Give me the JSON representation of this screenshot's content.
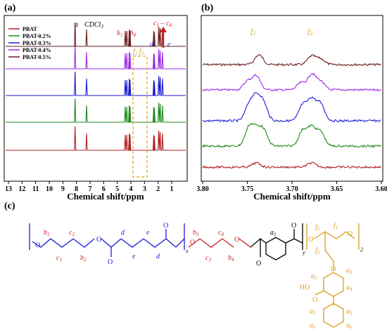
{
  "panels": {
    "a": "(a)",
    "b": "(b)",
    "c": "(c)"
  },
  "panel_a": {
    "xlabel": "Chemical shift/ppm",
    "ticks": [
      "13",
      "12",
      "11",
      "10",
      "9",
      "8",
      "7",
      "6",
      "5",
      "4",
      "3",
      "2",
      "1"
    ],
    "peak_labels": {
      "a": "a",
      "cdcl3": "CDCl",
      "cdcl3_sub": "3",
      "b": "b",
      "b_sub1": "1",
      "b_dash": " – ",
      "b_sub4": "4",
      "c": "c",
      "c_sub1": "1",
      "c_dash": " – ",
      "c_sub4": "4",
      "d": "d",
      "e": "e",
      "f2": "f",
      "f2_sub": "2",
      "f3": "f",
      "f3_sub": "3"
    },
    "legend": [
      {
        "name": "PBAT",
        "color": "#b22222"
      },
      {
        "name": "PBAT-0.2%",
        "color": "#1e8a1e"
      },
      {
        "name": "PBAT-0.3%",
        "color": "#1c1cd4"
      },
      {
        "name": "PBAT-0.4%",
        "color": "#9a2ee6"
      },
      {
        "name": "PBAT-0.5%",
        "color": "#6b1f1f"
      }
    ]
  },
  "panel_b": {
    "xlabel": "Chemical shift/ppm",
    "ticks": [
      "3.80",
      "3.75",
      "3.70",
      "3.65",
      "3.60"
    ],
    "labels": {
      "f2": "f",
      "f2_sub": "2",
      "f3": "f",
      "f3_sub": "3"
    },
    "colors": [
      "#6b1f1f",
      "#9a2ee6",
      "#1c1cd4",
      "#1e8a1e",
      "#b22222"
    ]
  },
  "panel_c": {
    "subs": {
      "x": "x",
      "y": "y",
      "two": "2"
    },
    "labels": {
      "b1": "b",
      "b1s": "1",
      "b2": "b",
      "b2s": "2",
      "c1": "c",
      "c1s": "1",
      "c2": "c",
      "c2s": "2",
      "d1": "d",
      "d2": "d",
      "e1": "e",
      "e2": "e",
      "b3": "b",
      "b3s": "3",
      "b4": "b",
      "b4s": "4",
      "c3": "c",
      "c3s": "3",
      "c4": "c",
      "c4s": "4",
      "a1": "a",
      "a1s": "1",
      "f1": "f",
      "f1s": "1",
      "f2": "f",
      "f2s": "2",
      "f3": "f",
      "f3s": "3",
      "a2": "a",
      "a2s": "2",
      "a3": "a",
      "a3s": "3",
      "a4": "a",
      "a4s": "4",
      "a5a": "a",
      "a5as": "5",
      "a5b": "a",
      "a5bs": "5",
      "a6a": "a",
      "a6as": "6",
      "a6b": "a",
      "a6bs": "6",
      "ho": "HO",
      "o_carbonyl": "O"
    },
    "colors": {
      "blue": "#1c1cd4",
      "red": "#cc1f1f",
      "black": "#000000",
      "orange": "#d9a020"
    }
  }
}
